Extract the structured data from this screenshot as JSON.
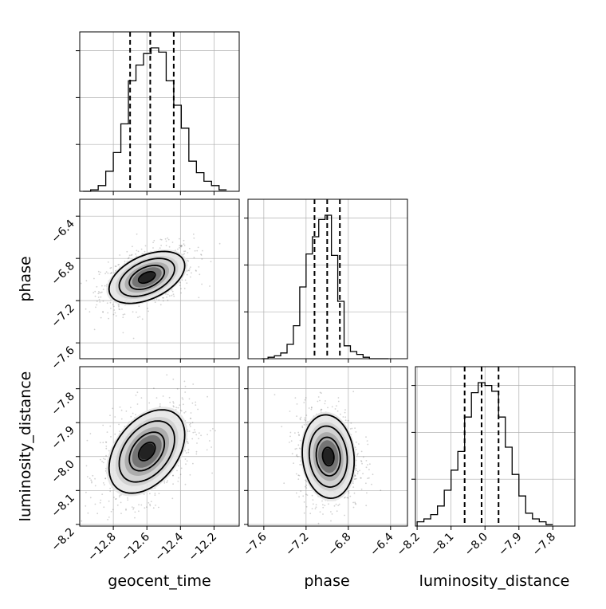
{
  "chart_data": {
    "type": "corner",
    "parameters": [
      "geocent_time",
      "phase",
      "luminosity_distance"
    ],
    "labels": {
      "bottom": [
        "geocent_time",
        "phase",
        "luminosity_distance"
      ],
      "left": [
        "phase",
        "luminosity_distance"
      ]
    },
    "ticks": {
      "geocent_time": [
        "−12.8",
        "−12.6",
        "−12.4",
        "−12.2"
      ],
      "phase": [
        "−7.6",
        "−7.2",
        "−6.8",
        "−6.4"
      ],
      "phase_y": [
        "−7.6",
        "−7.2",
        "−6.8",
        "−6.4"
      ],
      "luminosity_distance": [
        "−8.2",
        "−8.1",
        "−8.0",
        "−7.9",
        "−7.8"
      ],
      "luminosity_distance_y": [
        "−8.2",
        "−8.1",
        "−8.0",
        "−7.9",
        "−7.8"
      ]
    },
    "ranges": {
      "geocent_time": [
        -13.0,
        -12.05
      ],
      "phase": [
        -7.75,
        -6.24
      ],
      "luminosity_distance": [
        -8.205,
        -7.735
      ]
    },
    "quantiles": {
      "geocent_time": [
        -12.7,
        -12.58,
        -12.44
      ],
      "phase": [
        -7.12,
        -7.0,
        -6.88
      ],
      "luminosity_distance": [
        -8.06,
        -8.01,
        -7.96
      ]
    },
    "histograms": {
      "geocent_time": {
        "bins": [
          -12.98,
          -12.935,
          -12.89,
          -12.845,
          -12.8,
          -12.755,
          -12.71,
          -12.665,
          -12.62,
          -12.575,
          -12.53,
          -12.485,
          -12.44,
          -12.395,
          -12.35,
          -12.305,
          -12.26,
          -12.215,
          -12.17,
          -12.125
        ],
        "counts": [
          0.0,
          0.01,
          0.04,
          0.14,
          0.27,
          0.47,
          0.77,
          0.88,
          0.96,
          1.0,
          0.97,
          0.77,
          0.6,
          0.44,
          0.21,
          0.13,
          0.07,
          0.04,
          0.01
        ]
      },
      "phase": {
        "bins": [
          -7.62,
          -7.56,
          -7.5,
          -7.44,
          -7.38,
          -7.32,
          -7.26,
          -7.2,
          -7.14,
          -7.08,
          -7.02,
          -6.96,
          -6.9,
          -6.84,
          -6.78,
          -6.72,
          -6.66,
          -6.6,
          -6.54,
          -6.48,
          -6.42
        ],
        "counts": [
          0.0,
          0.01,
          0.02,
          0.04,
          0.1,
          0.23,
          0.5,
          0.73,
          0.85,
          0.97,
          1.0,
          0.72,
          0.4,
          0.09,
          0.05,
          0.03,
          0.01,
          0.0,
          0.0,
          0.0
        ]
      },
      "luminosity_distance": {
        "bins": [
          -8.2,
          -8.18,
          -8.16,
          -8.14,
          -8.12,
          -8.1,
          -8.08,
          -8.06,
          -8.04,
          -8.02,
          -8.0,
          -7.98,
          -7.96,
          -7.94,
          -7.92,
          -7.9,
          -7.88,
          -7.86,
          -7.84,
          -7.82,
          -7.8
        ],
        "counts": [
          0.03,
          0.05,
          0.08,
          0.14,
          0.25,
          0.39,
          0.52,
          0.76,
          0.93,
          1.0,
          0.98,
          0.94,
          0.76,
          0.55,
          0.36,
          0.21,
          0.09,
          0.05,
          0.03,
          0.01
        ]
      }
    },
    "pairs": [
      {
        "x": "geocent_time",
        "y": "phase",
        "center": [
          -12.6,
          -6.98
        ],
        "sigma": [
          0.11,
          0.12
        ],
        "corr": 0.45
      },
      {
        "x": "geocent_time",
        "y": "luminosity_distance",
        "center": [
          -12.6,
          -7.985
        ],
        "sigma": [
          0.11,
          0.06
        ],
        "corr": 0.4
      },
      {
        "x": "phase",
        "y": "luminosity_distance",
        "center": [
          -6.99,
          -8.0
        ],
        "sigma": [
          0.12,
          0.06
        ],
        "corr": -0.1
      }
    ],
    "grid": true
  },
  "colors": {
    "line": "#000000",
    "grid": "#b0b0b0",
    "points": "#000000"
  }
}
